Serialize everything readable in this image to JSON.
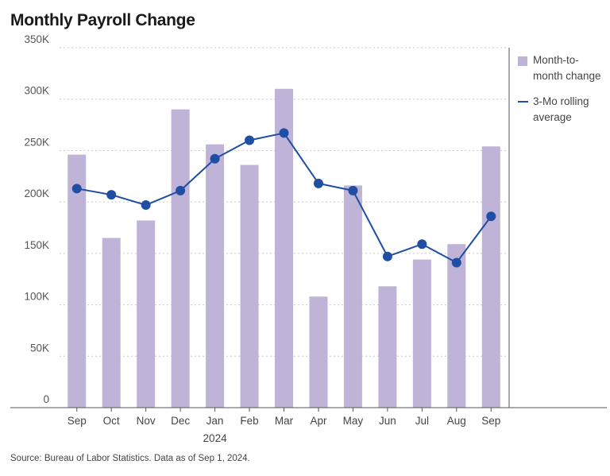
{
  "title": "Monthly Payroll Change",
  "source": "Source: Bureau of Labor Statistics. Data as of Sep 1, 2024.",
  "colors": {
    "bar": "#c0b3d8",
    "line": "#1f4ea3",
    "grid": "#c8c8c8",
    "axis": "#555555"
  },
  "legend": [
    {
      "label": "Month-to-month change",
      "line1": "Month-to-",
      "line2": "month change",
      "kind": "bar"
    },
    {
      "label": "3-Mo rolling average",
      "line1": "3-Mo rolling",
      "line2": "average",
      "kind": "line"
    }
  ],
  "chart_data": {
    "type": "bar",
    "title": "Monthly Payroll Change",
    "categories": [
      "Sep",
      "Oct",
      "Nov",
      "Dec",
      "Jan",
      "Feb",
      "Mar",
      "Apr",
      "May",
      "Jun",
      "Jul",
      "Aug",
      "Sep"
    ],
    "year_label": {
      "under": "Jan",
      "text": "2024"
    },
    "y_ticks": [
      0,
      50,
      100,
      150,
      200,
      250,
      300,
      350
    ],
    "y_tick_labels": [
      "0",
      "50K",
      "100K",
      "150K",
      "200K",
      "250K",
      "300K",
      "350K"
    ],
    "ylim": [
      0,
      350
    ],
    "ylabel": "",
    "xlabel": "",
    "series": [
      {
        "name": "Month-to-month change",
        "type": "bar",
        "values": [
          246,
          165,
          182,
          290,
          256,
          236,
          310,
          108,
          216,
          118,
          144,
          159,
          254
        ]
      },
      {
        "name": "3-Mo rolling average",
        "type": "line",
        "values": [
          213,
          207,
          197,
          211,
          242,
          260,
          267,
          218,
          211,
          147,
          159,
          141,
          186
        ]
      }
    ]
  }
}
